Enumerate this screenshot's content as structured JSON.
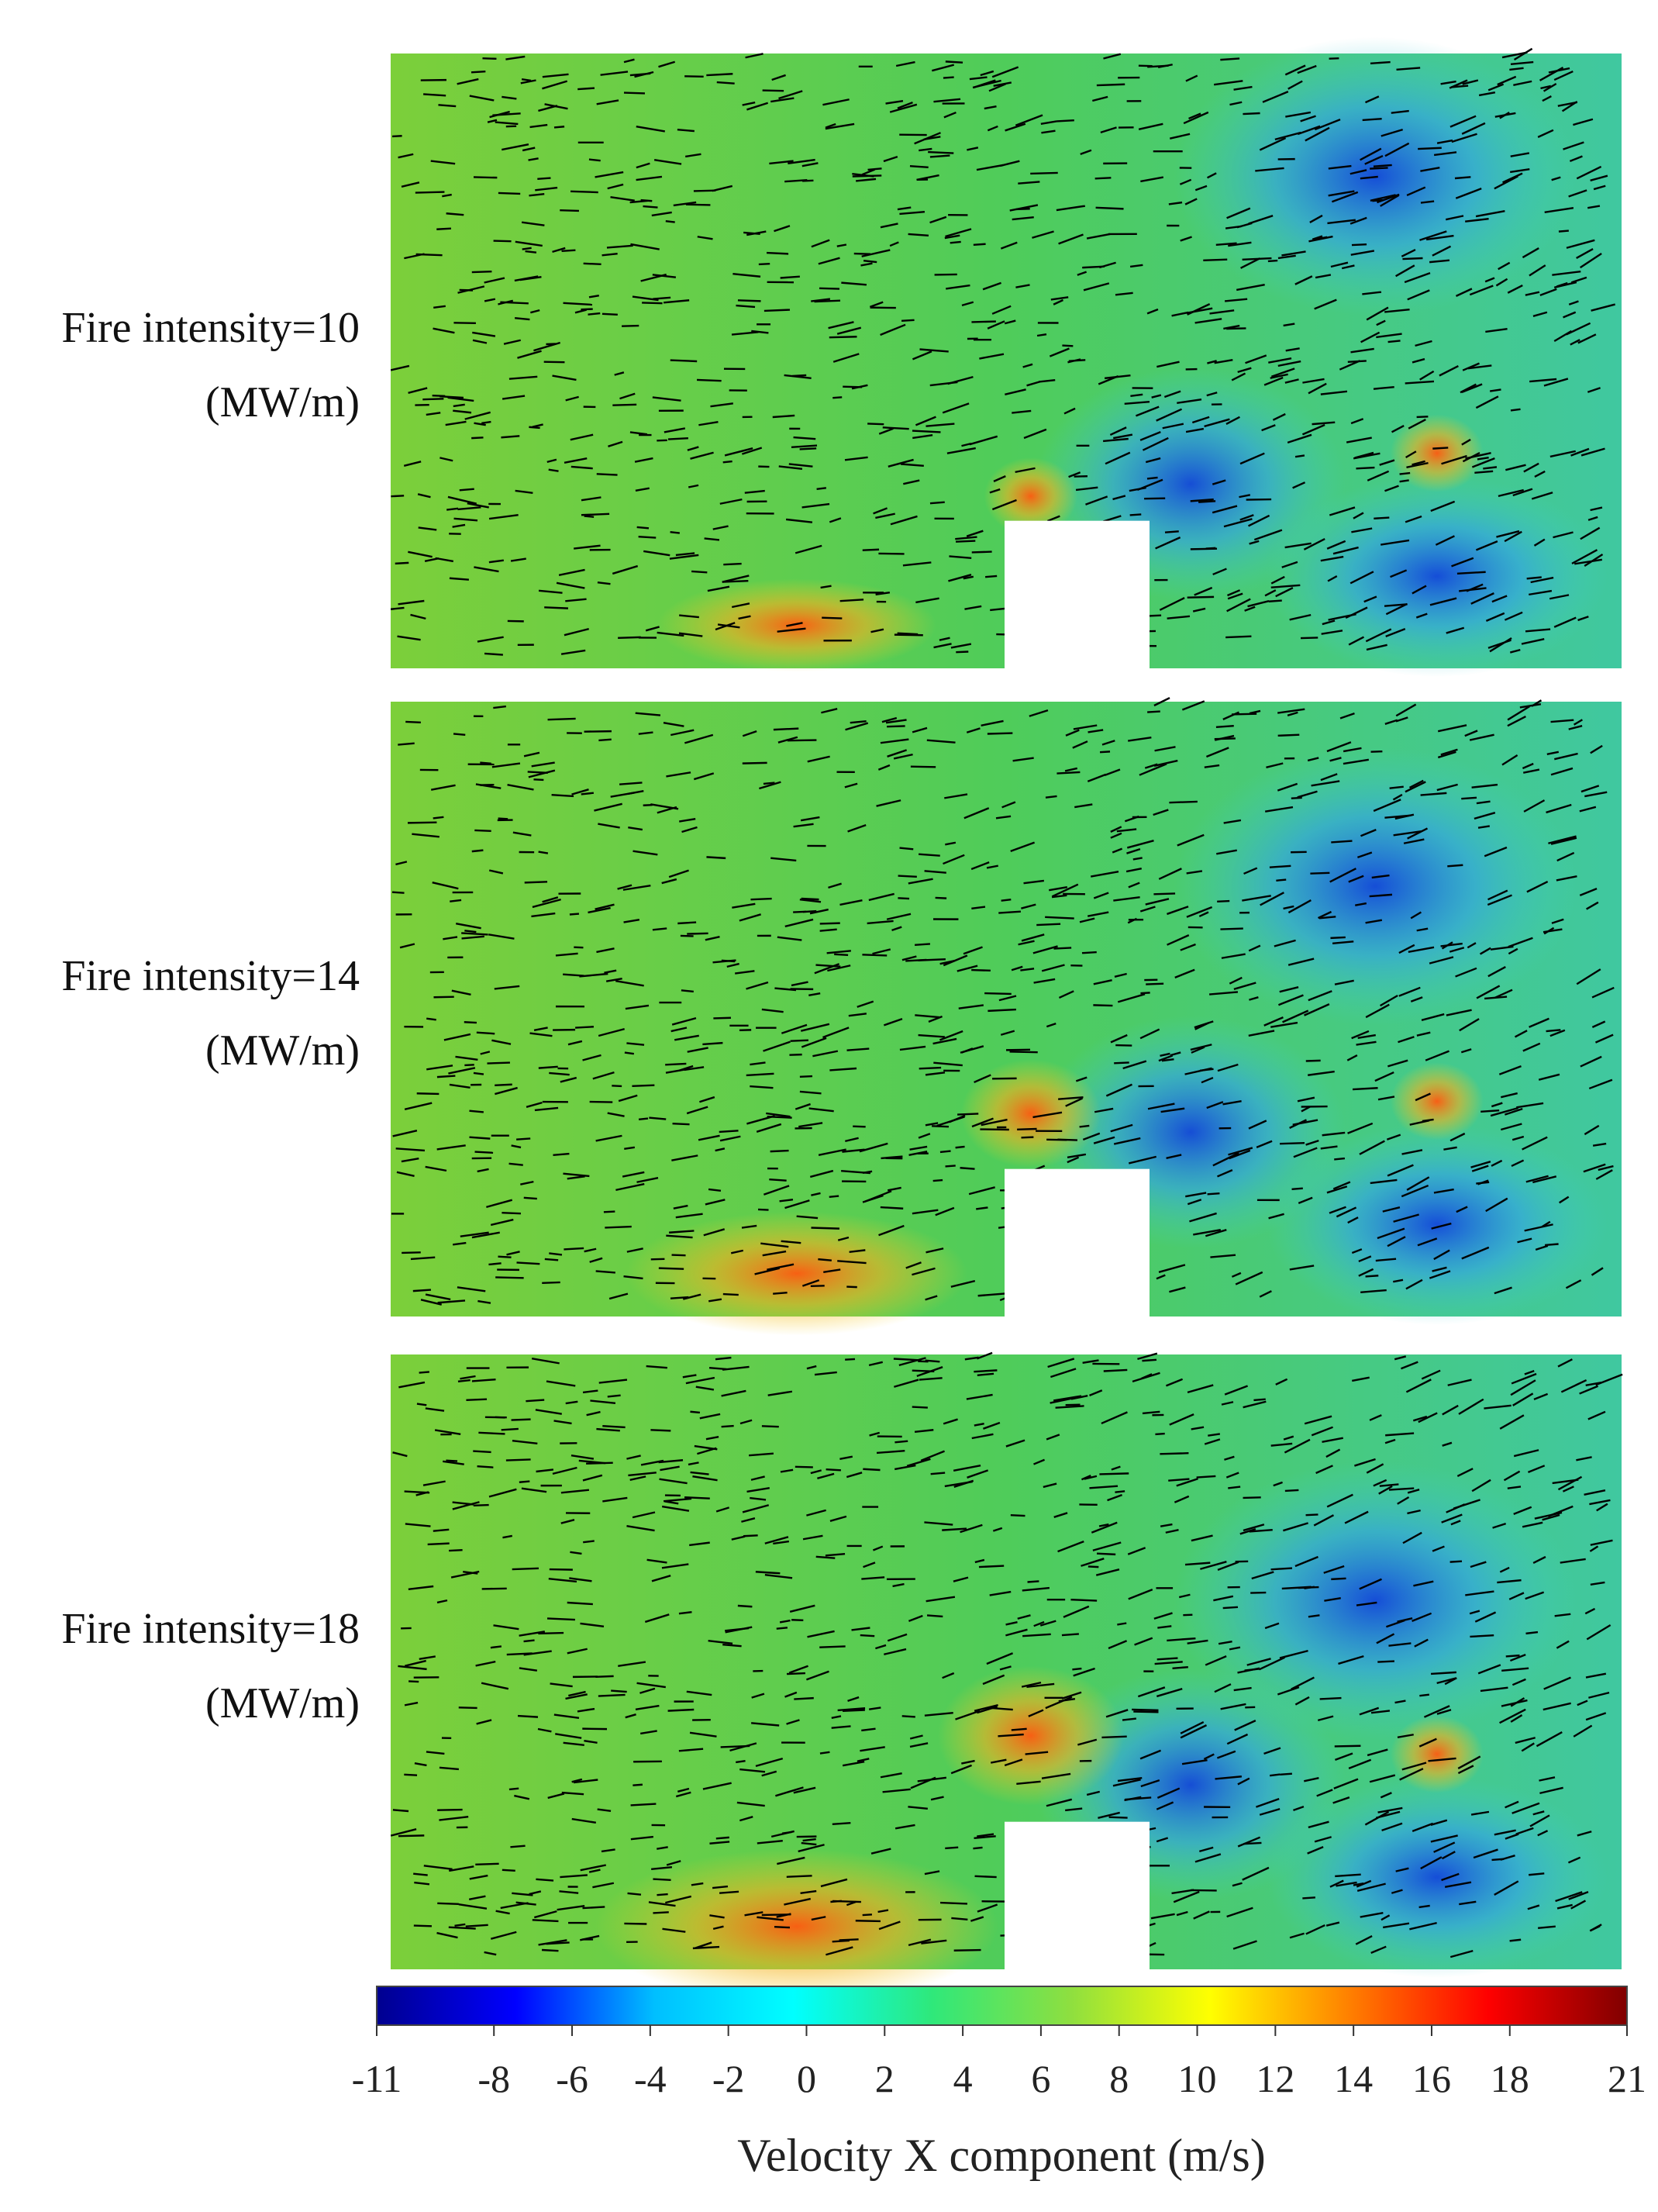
{
  "panels": [
    {
      "label": "Fire intensity=10",
      "unit": "(MW/m)"
    },
    {
      "label": "Fire intensity=14",
      "unit": "(MW/m)"
    },
    {
      "label": "Fire intensity=18",
      "unit": "(MW/m)"
    }
  ],
  "colorbar": {
    "title": "Velocity X component (m/s)",
    "range": [
      -11,
      21
    ],
    "ticks": [
      -11,
      -8,
      -6,
      -4,
      -2,
      0,
      2,
      4,
      6,
      8,
      10,
      12,
      14,
      16,
      18,
      21
    ],
    "colors": [
      "#00008f",
      "#0000ff",
      "#00bfff",
      "#00ffff",
      "#2fe87a",
      "#8fdf3f",
      "#ffff00",
      "#ff8000",
      "#ff0000",
      "#800000"
    ]
  }
}
